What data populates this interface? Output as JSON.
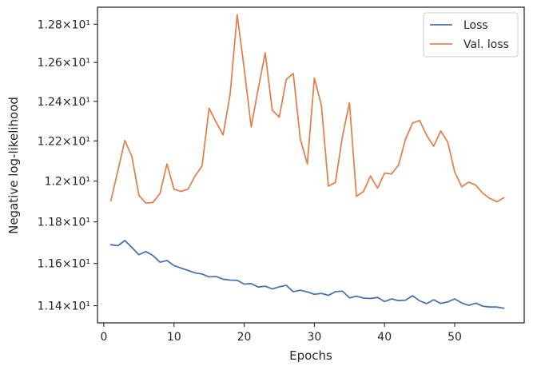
{
  "chart_data": {
    "type": "line",
    "xlabel": "Epochs",
    "ylabel": "Negative log-likelihood",
    "xlim": [
      -0.9,
      59.9
    ],
    "ylim": [
      11.32,
      12.89
    ],
    "y_scale": "log",
    "xticks": [
      0,
      10,
      20,
      30,
      40,
      50
    ],
    "yticks": [
      {
        "value": 11.4,
        "label": "1.14×10¹"
      },
      {
        "value": 11.6,
        "label": "1.16×10¹"
      },
      {
        "value": 11.8,
        "label": "1.18×10¹"
      },
      {
        "value": 12.0,
        "label": "1.2×10¹"
      },
      {
        "value": 12.2,
        "label": "1.22×10¹"
      },
      {
        "value": 12.4,
        "label": "1.24×10¹"
      },
      {
        "value": 12.6,
        "label": "1.26×10¹"
      },
      {
        "value": 12.8,
        "label": "1.28×10¹"
      }
    ],
    "grid": false,
    "legend_position": "top-right",
    "series": [
      {
        "name": "Loss",
        "color": "#4c72b0",
        "values": [
          11.69,
          11.685,
          11.71,
          11.677,
          11.642,
          11.657,
          11.638,
          11.606,
          11.614,
          11.59,
          11.578,
          11.567,
          11.555,
          11.55,
          11.536,
          11.538,
          11.525,
          11.521,
          11.52,
          11.502,
          11.504,
          11.488,
          11.492,
          11.479,
          11.489,
          11.496,
          11.466,
          11.473,
          11.465,
          11.454,
          11.458,
          11.449,
          11.466,
          11.469,
          11.437,
          11.445,
          11.436,
          11.434,
          11.439,
          11.42,
          11.432,
          11.424,
          11.426,
          11.447,
          11.423,
          11.41,
          11.428,
          11.411,
          11.418,
          11.432,
          11.413,
          11.402,
          11.412,
          11.398,
          11.394,
          11.394,
          11.388
        ]
      },
      {
        "name": "Val. loss",
        "color": "#dd8452",
        "values": [
          11.903,
          12.051,
          12.202,
          12.122,
          11.93,
          11.891,
          11.895,
          11.938,
          12.085,
          11.96,
          11.949,
          11.96,
          12.025,
          12.075,
          12.365,
          12.295,
          12.23,
          12.437,
          12.85,
          12.57,
          12.27,
          12.465,
          12.65,
          12.355,
          12.32,
          12.513,
          12.543,
          12.208,
          12.085,
          12.52,
          12.38,
          11.975,
          11.993,
          12.222,
          12.393,
          11.925,
          11.948,
          12.025,
          11.965,
          12.04,
          12.035,
          12.08,
          12.21,
          12.29,
          12.303,
          12.228,
          12.173,
          12.25,
          12.195,
          12.045,
          11.972,
          11.995,
          11.98,
          11.94,
          11.915,
          11.898,
          11.918
        ]
      }
    ]
  }
}
